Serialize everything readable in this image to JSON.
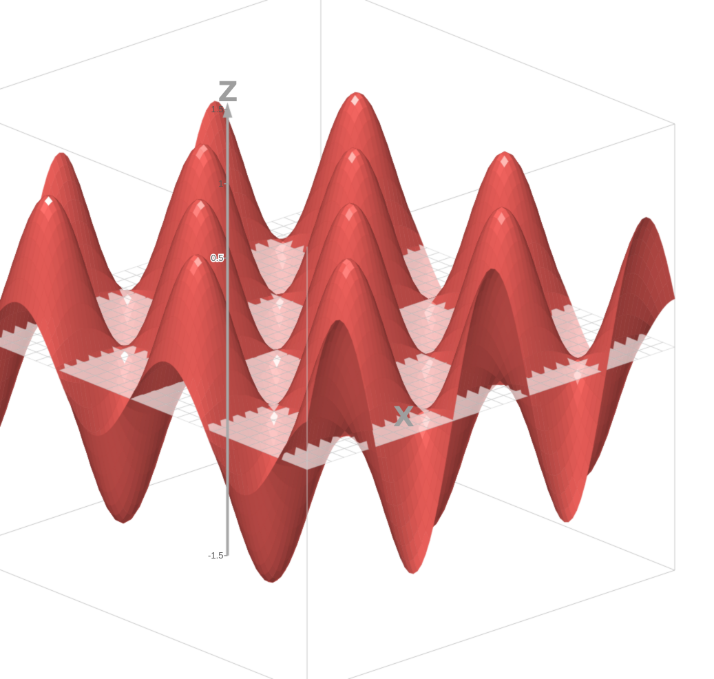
{
  "chart_data": {
    "type": "surface",
    "function": "z = sin(x) * cos(y)",
    "x_range": [
      -7.5,
      7.5
    ],
    "y_range": [
      -7.5,
      7.5
    ],
    "zlim": [
      -1.5,
      1.5
    ],
    "axes": {
      "z_letter": "Z",
      "x_letter": "X"
    },
    "z_ticks": [
      {
        "value": 1.5,
        "label": "1.5"
      },
      {
        "value": 1,
        "label": "1"
      },
      {
        "value": 0.5,
        "label": "0.5"
      },
      {
        "value": -1.5,
        "label": "-1.5"
      }
    ],
    "grid_plane": "z=0",
    "bounding_box": true,
    "colors": {
      "surface": "#e05a55",
      "surface_dark": "#8e2b28",
      "grid_line": "#b9b9b9",
      "plane": "#ffffff",
      "box_line": "#c8c8c8",
      "axis": "#a8a8a8",
      "axis_letter": "#9e9e9e"
    }
  }
}
